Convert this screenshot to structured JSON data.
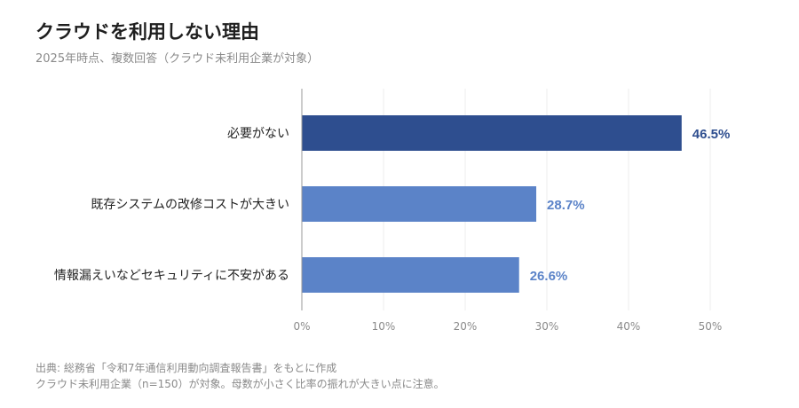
{
  "header": {
    "title": "クラウドを利用しない理由",
    "subtitle": "2025年時点、複数回答（クラウド未利用企業が対象）"
  },
  "chart_data": {
    "type": "bar",
    "orientation": "horizontal",
    "title": "クラウドを利用しない理由",
    "subtitle": "2025年時点、複数回答（クラウド未利用企業が対象）",
    "categories": [
      "必要がない",
      "既存システムの改修コストが大きい",
      "情報漏えいなどセキュリティに不安がある"
    ],
    "values": [
      46.5,
      28.7,
      26.6
    ],
    "value_labels": [
      "46.5%",
      "28.7%",
      "26.6%"
    ],
    "xlim": [
      0,
      50
    ],
    "x_ticks": [
      0,
      10,
      20,
      30,
      40,
      50
    ],
    "x_tick_labels": [
      "0%",
      "10%",
      "20%",
      "30%",
      "40%",
      "50%"
    ],
    "grid": true,
    "colors": [
      "#2e4e8f",
      "#5b83c8",
      "#5b83c8"
    ],
    "label_colors": [
      "#2e4e8f",
      "#5b83c8",
      "#5b83c8"
    ]
  },
  "footer": {
    "source_line1": "出典: 総務省「令和7年通信利用動向調査報告書」をもとに作成",
    "source_line2": "クラウド未利用企業（n=150）が対象。母数が小さく比率の振れが大きい点に注意。"
  }
}
